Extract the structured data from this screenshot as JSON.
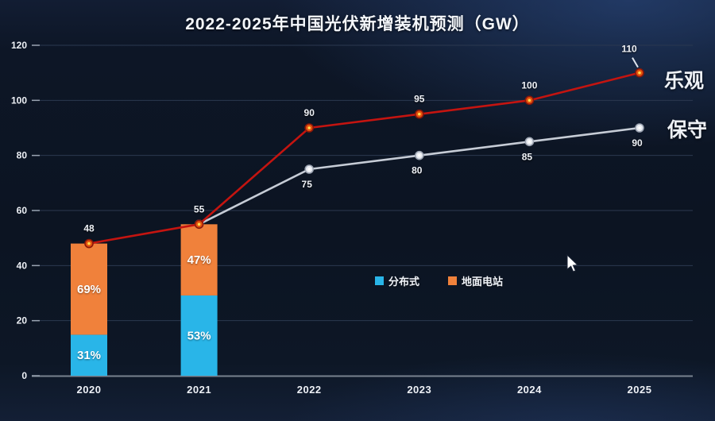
{
  "title": "2022-2025年中国光伏新增装机预测（GW）",
  "legend": [
    {
      "label": "分布式",
      "color": "#29b5e8"
    },
    {
      "label": "地面电站",
      "color": "#f0813b"
    }
  ],
  "chart_data": {
    "type": "bar+line composed",
    "title": "2022-2025年中国光伏新增装机预测（GW）",
    "categories": [
      "2020",
      "2021",
      "2022",
      "2023",
      "2024",
      "2025"
    ],
    "y_axis": {
      "min": 0,
      "max": 120,
      "step": 20,
      "ticks": [
        0,
        20,
        40,
        60,
        80,
        100,
        120
      ]
    },
    "grid": "horizontal",
    "bars": [
      {
        "category": "2020",
        "total": 48,
        "segments": [
          {
            "name": "分布式",
            "color": "#29b5e8",
            "pct": 31,
            "label": "31%"
          },
          {
            "name": "地面电站",
            "color": "#f0813b",
            "pct": 69,
            "label": "69%"
          }
        ]
      },
      {
        "category": "2021",
        "total": 55,
        "segments": [
          {
            "name": "分布式",
            "color": "#29b5e8",
            "pct": 53,
            "label": "53%"
          },
          {
            "name": "地面电站",
            "color": "#f0813b",
            "pct": 47,
            "label": "47%"
          }
        ]
      }
    ],
    "lines": [
      {
        "name": "乐观",
        "color": "#c41410",
        "name_color": "#bd100d",
        "marker": {
          "fill": "#e3520e",
          "stroke": "#8c170a",
          "center": "#ffd84f"
        },
        "values": [
          48,
          55,
          90,
          95,
          100,
          110
        ],
        "labels": [
          "48",
          "55",
          "90",
          "95",
          "100",
          "110"
        ],
        "label_side": "above"
      },
      {
        "name": "保守",
        "color": "#c6ccd6",
        "name_color": "#dde2ea",
        "marker": {
          "fill": "#e7eaf0",
          "stroke": "#9ba3b1",
          "center": "#ffffff"
        },
        "values": [
          null,
          55,
          75,
          80,
          85,
          90
        ],
        "labels": [
          null,
          null,
          "75",
          "80",
          "85",
          "90"
        ],
        "label_side": "below"
      }
    ]
  }
}
